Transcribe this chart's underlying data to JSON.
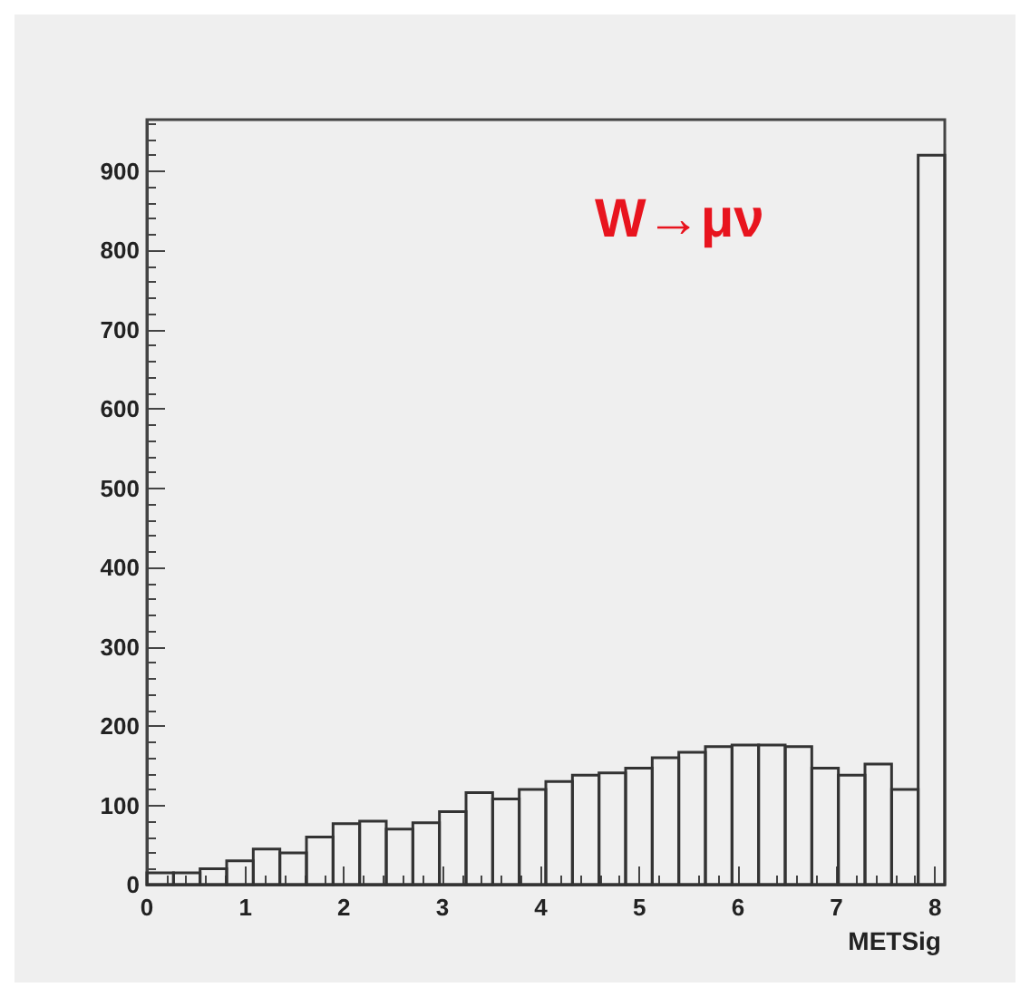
{
  "chart_data": {
    "type": "histogram",
    "xlabel": "METSig",
    "annotations": [
      "W→μν"
    ],
    "bins": [
      0,
      0.27,
      0.54,
      0.81,
      1.08,
      1.35,
      1.62,
      1.89,
      2.16,
      2.43,
      2.7,
      2.97,
      3.24,
      3.51,
      3.78,
      4.05,
      4.32,
      4.59,
      4.86,
      5.13,
      5.4,
      5.67,
      5.94,
      6.21,
      6.48,
      6.75,
      7.02,
      7.29,
      7.56,
      7.83,
      8.1
    ],
    "values": [
      15,
      15,
      20,
      30,
      45,
      40,
      60,
      77,
      80,
      70,
      78,
      92,
      116,
      108,
      120,
      130,
      138,
      141,
      147,
      160,
      167,
      174,
      176,
      176,
      174,
      147,
      138,
      152,
      120,
      920
    ],
    "color": "#333333",
    "xlim": [
      0,
      8.1
    ],
    "ylim": [
      0,
      965
    ],
    "xticks": [
      0,
      1,
      2,
      3,
      4,
      5,
      6,
      7,
      8
    ],
    "yticks": [
      0,
      100,
      200,
      300,
      400,
      500,
      600,
      700,
      800,
      900
    ],
    "grid": false
  }
}
